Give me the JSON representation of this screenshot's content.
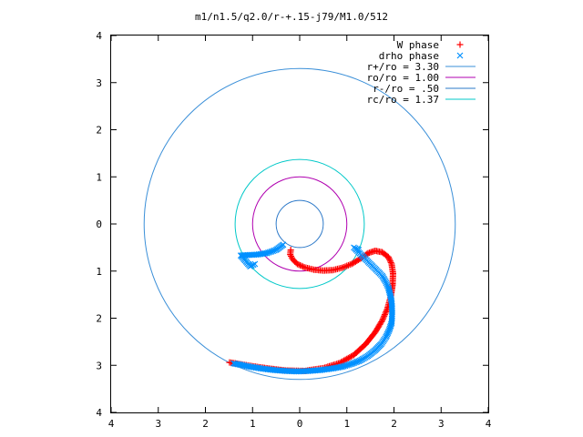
{
  "chart_data": {
    "type": "scatter",
    "title": "m1/n1.5/q2.0/r-+.15-j79/M1.0/512",
    "xlabel": "",
    "ylabel": "",
    "xlim": [
      -4,
      4
    ],
    "ylim": [
      -4,
      4
    ],
    "x_tick_labels": [
      "4",
      "3",
      "2",
      "1",
      "0",
      "1",
      "2",
      "3",
      "4"
    ],
    "y_tick_labels": [
      "4",
      "3",
      "2",
      "1",
      "0",
      "1",
      "2",
      "3",
      "4"
    ],
    "grid": false,
    "legend_position": "top-right",
    "legend": [
      {
        "label": "W phase",
        "kind": "plus",
        "color": "#ff0000"
      },
      {
        "label": "drho phase",
        "kind": "cross",
        "color": "#0090ff"
      },
      {
        "label": "r+/ro = 3.30",
        "kind": "line",
        "color": "#3a8fd8"
      },
      {
        "label": "ro/ro = 1.00",
        "kind": "line",
        "color": "#b000b0"
      },
      {
        "label": "r-/ro = .50",
        "kind": "line",
        "color": "#2b78c8"
      },
      {
        "label": "rc/ro = 1.37",
        "kind": "line",
        "color": "#00c8c8"
      }
    ],
    "circles": [
      {
        "name": "r+/ro",
        "radius": 3.3,
        "color": "#3a8fd8"
      },
      {
        "name": "ro/ro",
        "radius": 1.0,
        "color": "#b000b0"
      },
      {
        "name": "r-/ro",
        "radius": 0.5,
        "color": "#2b78c8"
      },
      {
        "name": "rc/ro",
        "radius": 1.37,
        "color": "#00c8c8"
      }
    ],
    "series": [
      {
        "name": "W phase",
        "color": "#ff0000",
        "marker": "plus",
        "points": [
          [
            -0.19,
            -0.55
          ],
          [
            -0.2,
            -0.65
          ],
          [
            -0.15,
            -0.75
          ],
          [
            -0.05,
            -0.85
          ],
          [
            0.1,
            -0.92
          ],
          [
            0.3,
            -0.97
          ],
          [
            0.5,
            -0.99
          ],
          [
            0.7,
            -0.98
          ],
          [
            0.9,
            -0.93
          ],
          [
            1.1,
            -0.85
          ],
          [
            1.3,
            -0.73
          ],
          [
            1.45,
            -0.62
          ],
          [
            1.6,
            -0.57
          ],
          [
            1.75,
            -0.6
          ],
          [
            1.88,
            -0.7
          ],
          [
            1.95,
            -0.85
          ],
          [
            1.98,
            -1.05
          ],
          [
            1.97,
            -1.3
          ],
          [
            1.93,
            -1.55
          ],
          [
            1.86,
            -1.8
          ],
          [
            1.75,
            -2.05
          ],
          [
            1.6,
            -2.3
          ],
          [
            1.4,
            -2.55
          ],
          [
            1.15,
            -2.78
          ],
          [
            0.85,
            -2.95
          ],
          [
            0.5,
            -3.06
          ],
          [
            0.1,
            -3.12
          ],
          [
            -0.3,
            -3.11
          ],
          [
            -0.65,
            -3.07
          ],
          [
            -1.0,
            -3.02
          ],
          [
            -1.3,
            -2.97
          ],
          [
            -1.49,
            -2.94
          ]
        ]
      },
      {
        "name": "drho phase",
        "color": "#0090ff",
        "marker": "cross",
        "points": [
          [
            -0.35,
            -0.44
          ],
          [
            -0.5,
            -0.55
          ],
          [
            -0.7,
            -0.62
          ],
          [
            -0.9,
            -0.65
          ],
          [
            -1.1,
            -0.66
          ],
          [
            -1.25,
            -0.67
          ],
          [
            -1.05,
            -0.9
          ],
          [
            -0.95,
            -0.85
          ],
          [
            1.25,
            -0.55
          ],
          [
            1.15,
            -0.5
          ],
          [
            1.25,
            -0.6
          ],
          [
            1.35,
            -0.7
          ],
          [
            1.45,
            -0.8
          ],
          [
            1.55,
            -0.9
          ],
          [
            1.65,
            -1.0
          ],
          [
            1.75,
            -1.1
          ],
          [
            1.82,
            -1.22
          ],
          [
            1.88,
            -1.35
          ],
          [
            1.92,
            -1.5
          ],
          [
            1.95,
            -1.65
          ],
          [
            1.96,
            -1.8
          ],
          [
            1.96,
            -1.95
          ],
          [
            1.95,
            -2.1
          ],
          [
            1.9,
            -2.25
          ],
          [
            1.83,
            -2.4
          ],
          [
            1.73,
            -2.55
          ],
          [
            1.6,
            -2.68
          ],
          [
            1.45,
            -2.8
          ],
          [
            1.28,
            -2.9
          ],
          [
            1.1,
            -2.97
          ],
          [
            0.9,
            -3.03
          ],
          [
            0.68,
            -3.07
          ],
          [
            0.45,
            -3.1
          ],
          [
            0.2,
            -3.12
          ],
          [
            -0.05,
            -3.13
          ],
          [
            -0.3,
            -3.12
          ],
          [
            -0.55,
            -3.1
          ],
          [
            -0.8,
            -3.07
          ],
          [
            -1.05,
            -3.03
          ],
          [
            -1.25,
            -2.99
          ],
          [
            -1.4,
            -2.96
          ]
        ]
      }
    ]
  }
}
